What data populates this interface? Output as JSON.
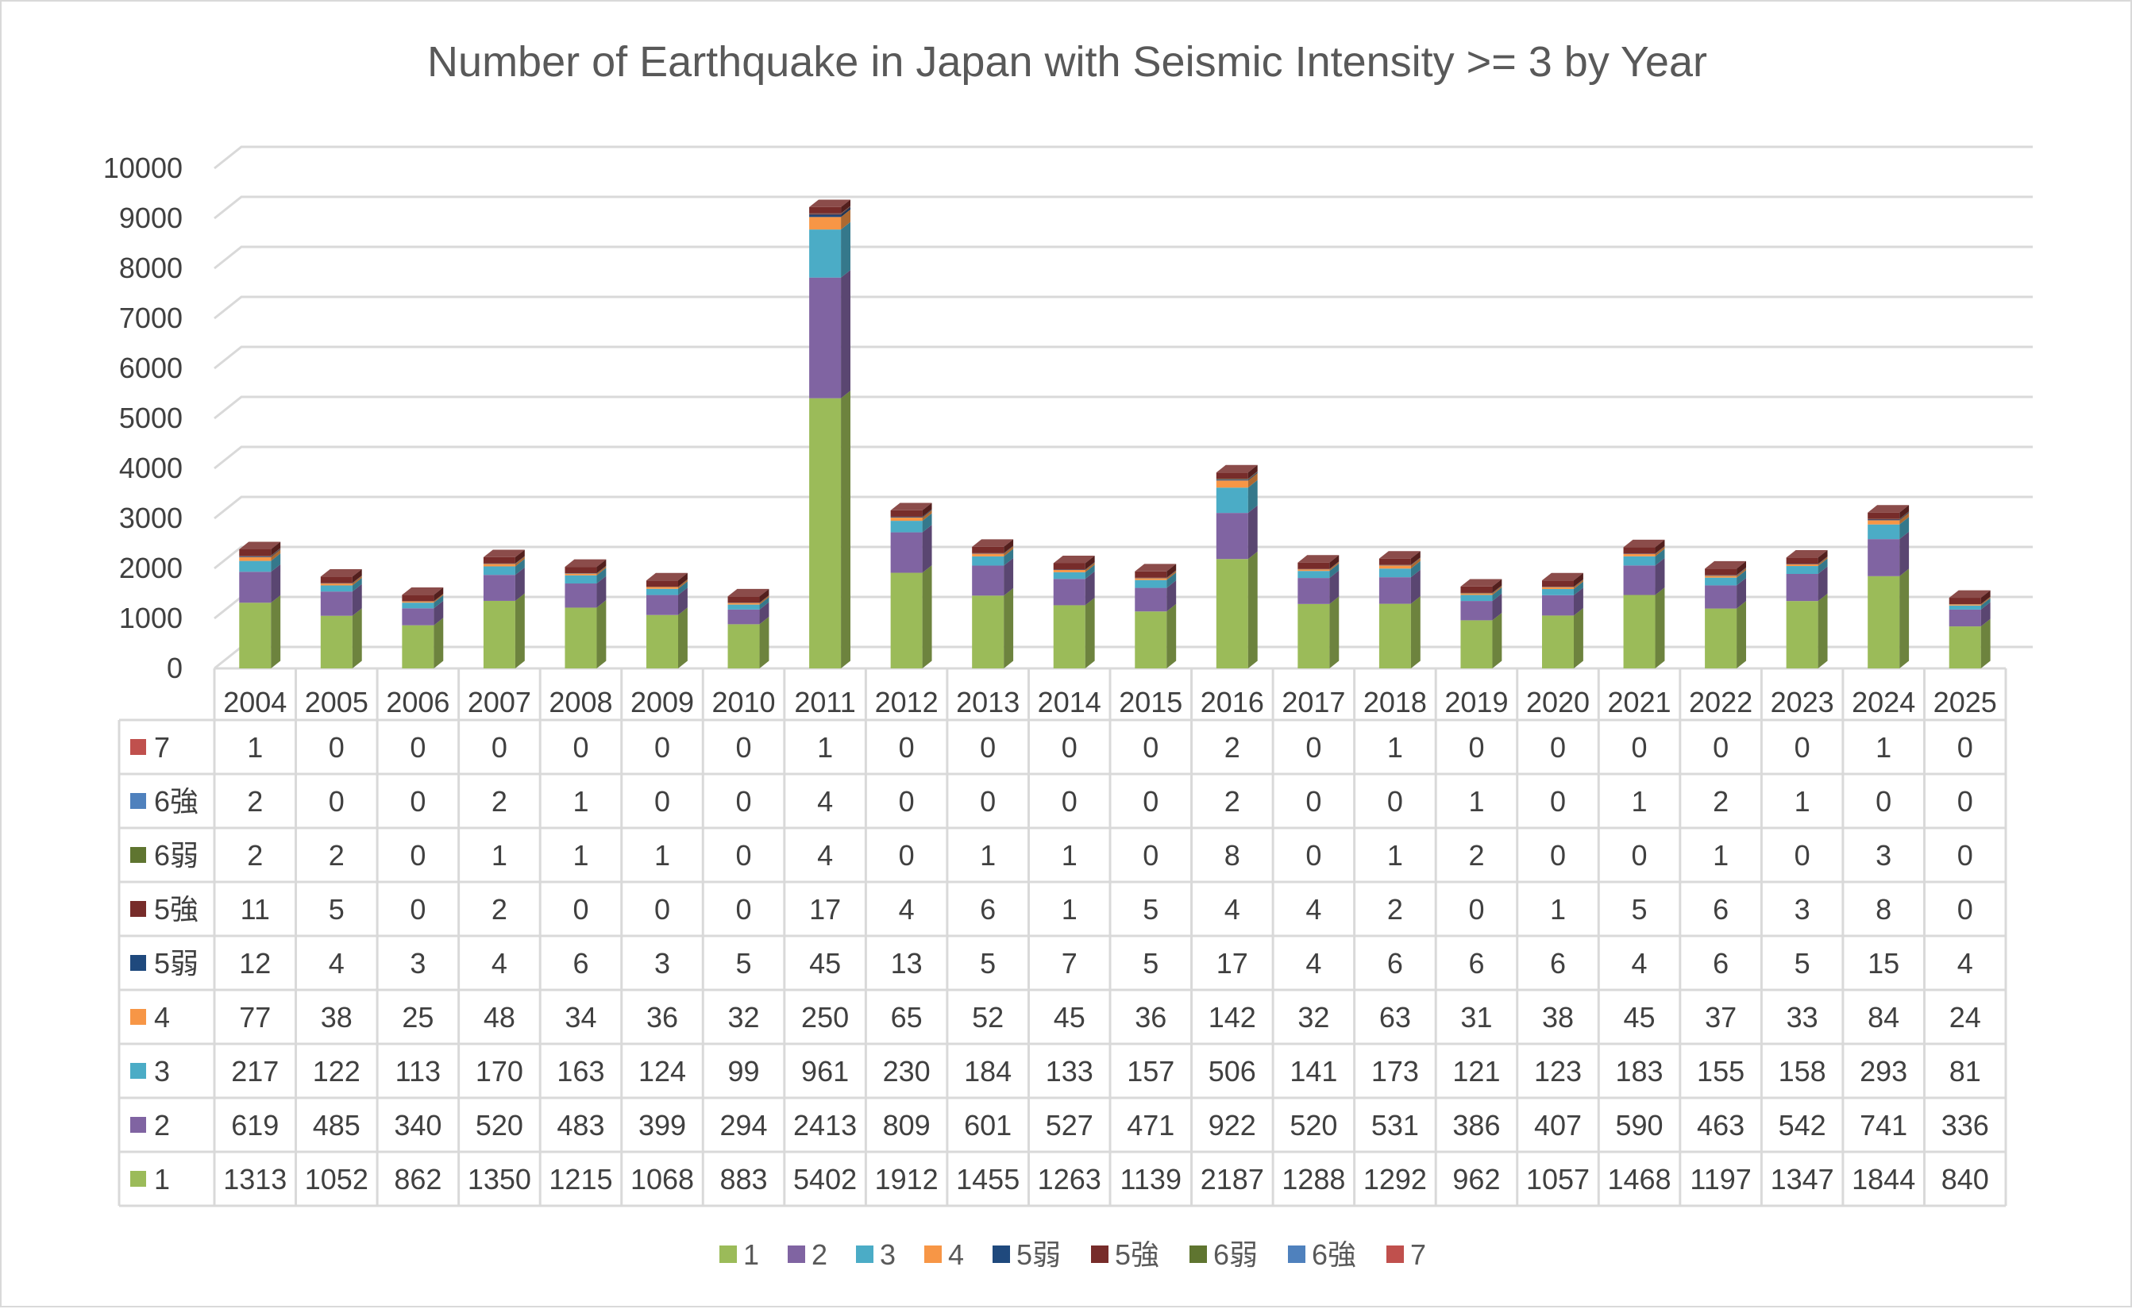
{
  "chart_data": {
    "type": "bar",
    "stacked": true,
    "style": "3d-stacked-column-with-data-table",
    "title": "Number of Earthquake in Japan with Seismic Intensity >= 3 by Year",
    "ylim": [
      0,
      10000
    ],
    "yticks": [
      0,
      1000,
      2000,
      3000,
      4000,
      5000,
      6000,
      7000,
      8000,
      9000,
      10000
    ],
    "grid": true,
    "legend_position": "bottom",
    "categories": [
      "2004",
      "2005",
      "2006",
      "2007",
      "2008",
      "2009",
      "2010",
      "2011",
      "2012",
      "2013",
      "2014",
      "2015",
      "2016",
      "2017",
      "2018",
      "2019",
      "2020",
      "2021",
      "2022",
      "2023",
      "2024",
      "2025"
    ],
    "series": [
      {
        "name": "1",
        "color": "#9BBB59",
        "values": [
          1313,
          1052,
          862,
          1350,
          1215,
          1068,
          883,
          5402,
          1912,
          1455,
          1263,
          1139,
          2187,
          1288,
          1292,
          962,
          1057,
          1468,
          1197,
          1347,
          1844,
          840
        ]
      },
      {
        "name": "2",
        "color": "#8064A2",
        "values": [
          619,
          485,
          340,
          520,
          483,
          399,
          294,
          2413,
          809,
          601,
          527,
          471,
          922,
          520,
          531,
          386,
          407,
          590,
          463,
          542,
          741,
          336
        ]
      },
      {
        "name": "3",
        "color": "#4BACC6",
        "values": [
          217,
          122,
          113,
          170,
          163,
          124,
          99,
          961,
          230,
          184,
          133,
          157,
          506,
          141,
          173,
          121,
          123,
          183,
          155,
          158,
          293,
          81
        ]
      },
      {
        "name": "4",
        "color": "#F79646",
        "values": [
          77,
          38,
          25,
          48,
          34,
          36,
          32,
          250,
          65,
          52,
          45,
          36,
          142,
          32,
          63,
          31,
          38,
          45,
          37,
          33,
          84,
          24
        ]
      },
      {
        "name": "5弱",
        "color": "#1F497D",
        "values": [
          12,
          4,
          3,
          4,
          6,
          3,
          5,
          45,
          13,
          5,
          7,
          5,
          17,
          4,
          6,
          6,
          6,
          4,
          6,
          5,
          15,
          4
        ]
      },
      {
        "name": "5強",
        "color": "#772C2A",
        "values": [
          11,
          5,
          0,
          2,
          0,
          0,
          0,
          17,
          4,
          6,
          1,
          5,
          4,
          4,
          2,
          0,
          1,
          5,
          6,
          3,
          8,
          0
        ]
      },
      {
        "name": "6弱",
        "color": "#5F7530",
        "values": [
          2,
          2,
          0,
          1,
          1,
          1,
          0,
          4,
          0,
          1,
          1,
          0,
          8,
          0,
          1,
          2,
          0,
          0,
          1,
          0,
          3,
          0
        ]
      },
      {
        "name": "6強",
        "color": "#4F81BD",
        "values": [
          2,
          0,
          0,
          2,
          1,
          0,
          0,
          4,
          0,
          0,
          0,
          0,
          2,
          0,
          0,
          1,
          0,
          1,
          2,
          1,
          0,
          0
        ]
      },
      {
        "name": "7",
        "color": "#C0504D",
        "values": [
          1,
          0,
          0,
          0,
          0,
          0,
          0,
          1,
          0,
          0,
          0,
          0,
          2,
          0,
          1,
          0,
          0,
          0,
          0,
          0,
          1,
          0
        ]
      }
    ]
  }
}
